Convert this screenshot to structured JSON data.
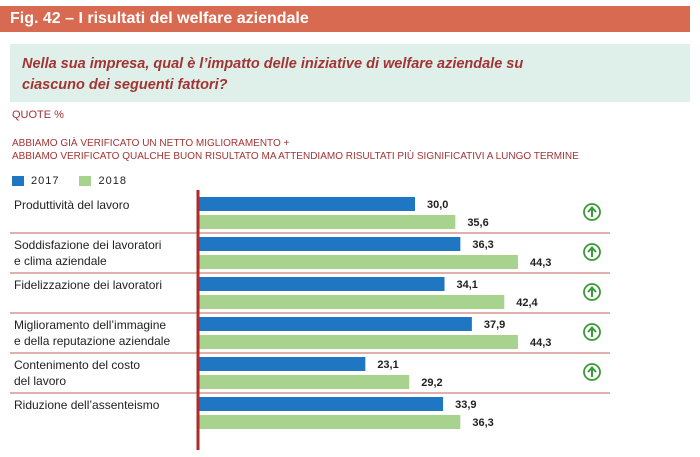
{
  "figure": {
    "label": "Fig. 42 – I risultati del welfare aziendale",
    "question": "Nella sua impresa, qual è l’impatto delle iniziative di welfare aziendale su ciascuno dei seguenti fattori?",
    "quote_label": "QUOTE %",
    "subtitle_line1": "ABBIAMO GIÀ VERIFICATO UN NETTO MIGLIORAMENTO +",
    "subtitle_line2": "ABBIAMO VERIFICATO QUALCHE BUON RISULTATO MA ATTENDIAMO RISULTATI PIÙ SIGNIFICATIVI A LUNGO TERMINE",
    "legend": [
      {
        "name": "2017",
        "color": "#1f76c2"
      },
      {
        "name": "2018",
        "color": "#a8d38e"
      }
    ],
    "colors": {
      "header_bar": "#d96a52",
      "header_text": "#ffffff",
      "question_text": "#a33434",
      "bubble_bg": "#dff0ea",
      "axis_line": "#b02a2a",
      "divider": "#b02a2a",
      "trend_icon": "#3a9a3a"
    }
  },
  "chart_data": {
    "type": "bar",
    "orientation": "horizontal",
    "categories": [
      [
        "Produttività del lavoro"
      ],
      [
        "Soddisfazione dei lavoratori",
        "e clima aziendale"
      ],
      [
        "Fidelizzazione dei lavoratori"
      ],
      [
        "Miglioramento dell’immagine",
        "e della reputazione aziendale"
      ],
      [
        "Contenimento del costo",
        "del lavoro"
      ],
      [
        "Riduzione dell’assenteismo"
      ]
    ],
    "series": [
      {
        "name": "2017",
        "values": [
          30.0,
          36.3,
          34.1,
          37.9,
          23.1,
          33.9
        ],
        "labels": [
          "30,0",
          "36,3",
          "34,1",
          "37,9",
          "23,1",
          "33,9"
        ]
      },
      {
        "name": "2018",
        "values": [
          35.6,
          44.3,
          42.4,
          44.3,
          29.2,
          36.3
        ],
        "labels": [
          "35,6",
          "44,3",
          "42,4",
          "44,3",
          "29,2",
          "36,3"
        ]
      }
    ],
    "trend_up": [
      true,
      true,
      true,
      true,
      true,
      false
    ],
    "xlim": [
      0,
      50
    ],
    "legend_position": "top-left"
  }
}
